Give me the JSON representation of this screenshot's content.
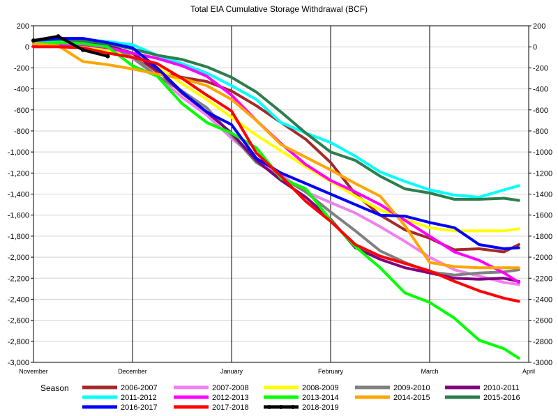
{
  "chart_data": {
    "type": "line",
    "title": "Total EIA Cumulative Storage Withdrawal (BCF)",
    "x_tick_labels": [
      "November",
      "December",
      "January",
      "February",
      "March",
      "April"
    ],
    "x_range": [
      0,
      5
    ],
    "ylim": [
      -3000,
      200
    ],
    "y_ticks_left": [
      200,
      0,
      -200,
      -400,
      -600,
      -800,
      -1000,
      -1200,
      -1400,
      -1600,
      -1800,
      -2000,
      -2200,
      -2400,
      -2600,
      -2800,
      -3000
    ],
    "y_tick_labels_left": [
      "200",
      "0",
      "-200",
      "-400",
      "-600",
      "-800",
      "-1,000",
      "-1,200",
      "-1,400",
      "-1,600",
      "-1,800",
      "-2,000",
      "-2,200",
      "-2,400",
      "-2,600",
      "-2,800",
      "-3,000"
    ],
    "y_tick_labels_right": [
      "200",
      "0",
      "-200",
      "-400",
      "-600",
      "-800",
      "-1000",
      "-1200",
      "-1400",
      "-1600",
      "-1800",
      "-2000",
      "-2200",
      "-2400",
      "-2600",
      "-2800",
      "-3000"
    ],
    "grid": true,
    "legend": {
      "title": "Season",
      "placement": "bottom"
    },
    "series": [
      {
        "name": "2006-2007",
        "color": "#a52a2a",
        "x": [
          0,
          0.25,
          0.5,
          0.75,
          1,
          1.25,
          1.5,
          1.75,
          2,
          2.25,
          2.5,
          2.75,
          3,
          3.25,
          3.5,
          3.75,
          4,
          4.25,
          4.5,
          4.75,
          4.9
        ],
        "y": [
          20,
          30,
          20,
          -10,
          -70,
          -240,
          -290,
          -330,
          -420,
          -560,
          -720,
          -880,
          -1100,
          -1400,
          -1600,
          -1740,
          -1820,
          -1930,
          -1920,
          -1950,
          -1880
        ]
      },
      {
        "name": "2007-2008",
        "color": "#ee82ee",
        "x": [
          0,
          0.25,
          0.5,
          0.75,
          1,
          1.25,
          1.5,
          1.75,
          2,
          2.25,
          2.5,
          2.75,
          3,
          3.25,
          3.5,
          3.75,
          4,
          4.25,
          4.5,
          4.75,
          4.9
        ],
        "y": [
          10,
          20,
          10,
          -20,
          -110,
          -280,
          -480,
          -650,
          -870,
          -1060,
          -1220,
          -1380,
          -1480,
          -1580,
          -1710,
          -1850,
          -2000,
          -2120,
          -2180,
          -2240,
          -2260
        ]
      },
      {
        "name": "2008-2009",
        "color": "#ffff00",
        "x": [
          0,
          0.25,
          0.5,
          0.75,
          1,
          1.25,
          1.5,
          1.75,
          2,
          2.25,
          2.5,
          2.75,
          3,
          3.25,
          3.5,
          3.75,
          4,
          4.25,
          4.5,
          4.75,
          4.9
        ],
        "y": [
          20,
          20,
          0,
          -30,
          -90,
          -190,
          -350,
          -500,
          -670,
          -840,
          -990,
          -1140,
          -1280,
          -1420,
          -1550,
          -1640,
          -1720,
          -1750,
          -1750,
          -1750,
          -1730
        ]
      },
      {
        "name": "2009-2010",
        "color": "#808080",
        "x": [
          0,
          0.25,
          0.5,
          0.75,
          1,
          1.25,
          1.5,
          1.75,
          2,
          2.25,
          2.5,
          2.75,
          3,
          3.25,
          3.5,
          3.75,
          4,
          4.25,
          4.5,
          4.75,
          4.9
        ],
        "y": [
          40,
          50,
          40,
          20,
          -100,
          -280,
          -420,
          -580,
          -840,
          -1100,
          -1240,
          -1380,
          -1570,
          -1750,
          -1940,
          -2050,
          -2140,
          -2170,
          -2150,
          -2140,
          -2120
        ]
      },
      {
        "name": "2010-2011",
        "color": "#800080",
        "x": [
          0,
          0.25,
          0.5,
          0.75,
          1,
          1.25,
          1.5,
          1.75,
          2,
          2.25,
          2.5,
          2.75,
          3,
          3.25,
          3.5,
          3.75,
          4,
          4.25,
          4.5,
          4.75,
          4.9
        ],
        "y": [
          30,
          40,
          30,
          10,
          -60,
          -220,
          -440,
          -620,
          -820,
          -1080,
          -1270,
          -1430,
          -1640,
          -1910,
          -2020,
          -2100,
          -2150,
          -2200,
          -2210,
          -2200,
          -2230
        ]
      },
      {
        "name": "2011-2012",
        "color": "#00ffff",
        "x": [
          0,
          0.25,
          0.5,
          0.75,
          1,
          1.25,
          1.5,
          1.75,
          2,
          2.25,
          2.5,
          2.75,
          3,
          3.25,
          3.5,
          3.75,
          4,
          4.25,
          4.5,
          4.75,
          4.9
        ],
        "y": [
          40,
          60,
          70,
          50,
          20,
          -80,
          -160,
          -250,
          -370,
          -500,
          -720,
          -820,
          -910,
          -1040,
          -1190,
          -1280,
          -1360,
          -1410,
          -1430,
          -1360,
          -1320
        ]
      },
      {
        "name": "2012-2013",
        "color": "#ff00ff",
        "x": [
          0,
          0.25,
          0.5,
          0.75,
          1,
          1.25,
          1.5,
          1.75,
          2,
          2.25,
          2.5,
          2.75,
          3,
          3.25,
          3.5,
          3.75,
          4,
          4.25,
          4.5,
          4.75,
          4.9
        ],
        "y": [
          10,
          20,
          20,
          -10,
          -60,
          -110,
          -180,
          -280,
          -460,
          -700,
          -920,
          -1120,
          -1270,
          -1380,
          -1500,
          -1650,
          -1800,
          -1950,
          -2030,
          -2150,
          -2240
        ]
      },
      {
        "name": "2013-2014",
        "color": "#00ff00",
        "x": [
          0,
          0.25,
          0.5,
          0.75,
          1,
          1.25,
          1.5,
          1.75,
          2,
          2.25,
          2.5,
          2.75,
          3,
          3.25,
          3.5,
          3.75,
          4,
          4.25,
          4.5,
          4.75,
          4.9
        ],
        "y": [
          30,
          40,
          30,
          0,
          -180,
          -280,
          -540,
          -720,
          -820,
          -960,
          -1250,
          -1350,
          -1650,
          -1900,
          -2100,
          -2340,
          -2430,
          -2580,
          -2790,
          -2870,
          -2960
        ]
      },
      {
        "name": "2014-2015",
        "color": "#ffa500",
        "x": [
          0,
          0.25,
          0.5,
          0.75,
          1,
          1.25,
          1.5,
          1.75,
          2,
          2.25,
          2.5,
          2.75,
          3,
          3.25,
          3.5,
          3.75,
          4,
          4.25,
          4.5,
          4.75,
          4.9
        ],
        "y": [
          30,
          10,
          -140,
          -170,
          -210,
          -260,
          -300,
          -370,
          -500,
          -700,
          -930,
          -1050,
          -1170,
          -1300,
          -1420,
          -1700,
          -2050,
          -2090,
          -2100,
          -2100,
          -2100
        ]
      },
      {
        "name": "2015-2016",
        "color": "#2e7d4f",
        "x": [
          0,
          0.25,
          0.5,
          0.75,
          1,
          1.25,
          1.5,
          1.75,
          2,
          2.25,
          2.5,
          2.75,
          3,
          3.25,
          3.5,
          3.75,
          4,
          4.25,
          4.5,
          4.75,
          4.9
        ],
        "y": [
          60,
          70,
          60,
          30,
          -20,
          -80,
          -120,
          -190,
          -290,
          -430,
          -620,
          -820,
          -1000,
          -1080,
          -1230,
          -1350,
          -1390,
          -1450,
          -1450,
          -1440,
          -1460
        ]
      },
      {
        "name": "2016-2017",
        "color": "#0000ff",
        "x": [
          0,
          0.25,
          0.5,
          0.75,
          1,
          1.25,
          1.5,
          1.75,
          2,
          2.25,
          2.5,
          2.75,
          3,
          3.25,
          3.5,
          3.75,
          4,
          4.25,
          4.5,
          4.75,
          4.9
        ],
        "y": [
          60,
          80,
          80,
          40,
          -10,
          -200,
          -430,
          -620,
          -740,
          -1060,
          -1200,
          -1300,
          -1400,
          -1500,
          -1600,
          -1610,
          -1670,
          -1720,
          -1880,
          -1920,
          -1910
        ]
      },
      {
        "name": "2017-2018",
        "color": "#ff0000",
        "x": [
          0,
          0.25,
          0.5,
          0.75,
          1,
          1.25,
          1.5,
          1.75,
          2,
          2.25,
          2.5,
          2.75,
          3,
          3.25,
          3.5,
          3.75,
          4,
          4.25,
          4.5,
          4.75,
          4.9
        ],
        "y": [
          0,
          0,
          -10,
          -60,
          -100,
          -160,
          -300,
          -460,
          -610,
          -1010,
          -1230,
          -1470,
          -1660,
          -1880,
          -1990,
          -2060,
          -2130,
          -2230,
          -2320,
          -2390,
          -2420
        ]
      },
      {
        "name": "2018-2019",
        "color": "#000000",
        "marker": true,
        "x": [
          0,
          0.25,
          0.5,
          0.75
        ],
        "y": [
          60,
          100,
          -30,
          -90
        ]
      }
    ]
  }
}
